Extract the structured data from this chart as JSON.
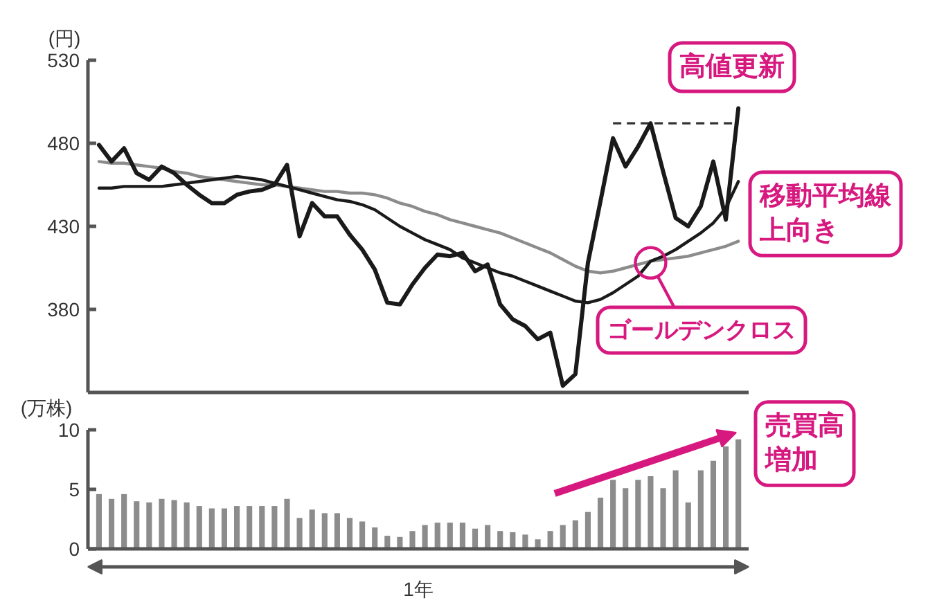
{
  "chart_data": [
    {
      "type": "line",
      "ylabel": "(円)",
      "tick_labels": "y",
      "ylim": [
        330,
        530
      ],
      "yticks": [
        380,
        430,
        480,
        530
      ],
      "categories": [
        null,
        null,
        null,
        null,
        null,
        null,
        null,
        null,
        null,
        null,
        null,
        null,
        null,
        null,
        null,
        null,
        null,
        null,
        null,
        null,
        null,
        null,
        null,
        null,
        null,
        null,
        null,
        null,
        null,
        null,
        null,
        null,
        null,
        null,
        null,
        null,
        null,
        null,
        null,
        null,
        null,
        null,
        null,
        null,
        null,
        null,
        null,
        null,
        null,
        null,
        null,
        null
      ],
      "series": [
        {
          "color": "#1a1a1a",
          "values": [
            479,
            469,
            477,
            462,
            458,
            466,
            462,
            455,
            449,
            444,
            444,
            449,
            451,
            452,
            455,
            467,
            424,
            444,
            436,
            436,
            425,
            416,
            404,
            384,
            383,
            395,
            405,
            413,
            412,
            414,
            403,
            407,
            383,
            374,
            370,
            362,
            366,
            334,
            341,
            408,
            445,
            483,
            466,
            478,
            492,
            463,
            435,
            430,
            442,
            469,
            434,
            501
          ]
        },
        {
          "color": "#1a1a1a",
          "values": [
            453,
            453,
            454,
            454,
            454,
            454,
            455,
            456,
            457,
            458,
            459,
            460,
            459,
            458,
            456,
            454,
            452,
            450,
            448,
            446,
            445,
            443,
            440,
            435,
            430,
            426,
            422,
            419,
            416,
            411,
            408,
            405,
            402,
            400,
            397,
            394,
            391,
            388,
            385,
            384,
            386,
            390,
            395,
            400,
            409,
            412,
            416,
            421,
            426,
            432,
            441,
            457
          ]
        },
        {
          "color": "#8c8c8c",
          "values": [
            469,
            468,
            468,
            467,
            466,
            465,
            463,
            462,
            460,
            459,
            458,
            457,
            456,
            455,
            455,
            454,
            453,
            452,
            451,
            451,
            450,
            450,
            449,
            447,
            444,
            442,
            439,
            437,
            434,
            432,
            430,
            428,
            426,
            423,
            420,
            417,
            414,
            410,
            406,
            403,
            402,
            403,
            405,
            407,
            409,
            410,
            411,
            412,
            414,
            416,
            418,
            421
          ]
        },
        {
          "color": "#333333",
          "line_style": "dashed",
          "values": [
            null,
            null,
            null,
            null,
            null,
            null,
            null,
            null,
            null,
            null,
            null,
            null,
            null,
            null,
            null,
            null,
            null,
            null,
            null,
            null,
            null,
            null,
            null,
            null,
            null,
            null,
            null,
            null,
            null,
            null,
            null,
            null,
            null,
            null,
            null,
            null,
            null,
            null,
            null,
            null,
            null,
            492,
            492,
            492,
            492,
            492,
            492,
            492,
            492,
            492,
            492,
            492
          ]
        },
        {
          "type": "scatter",
          "marker": "circle",
          "color": "#d6187f",
          "values": [
            null,
            null,
            null,
            null,
            null,
            null,
            null,
            null,
            null,
            null,
            null,
            null,
            null,
            null,
            null,
            null,
            null,
            null,
            null,
            null,
            null,
            null,
            null,
            null,
            null,
            null,
            null,
            null,
            null,
            null,
            null,
            null,
            null,
            null,
            null,
            null,
            null,
            null,
            null,
            null,
            null,
            null,
            null,
            null,
            408,
            null,
            null,
            null,
            null,
            null,
            null,
            null
          ]
        }
      ],
      "annotations": [
        "高値更新",
        "移動平均線上向き",
        "ゴールデンクロス"
      ]
    },
    {
      "type": "bar",
      "ylabel": "(万株)",
      "xlabel": "1年",
      "tick_labels": "y",
      "ylim": [
        0,
        10
      ],
      "yticks": [
        0,
        5,
        10
      ],
      "color": "#8c8c8c",
      "categories": [
        null,
        null,
        null,
        null,
        null,
        null,
        null,
        null,
        null,
        null,
        null,
        null,
        null,
        null,
        null,
        null,
        null,
        null,
        null,
        null,
        null,
        null,
        null,
        null,
        null,
        null,
        null,
        null,
        null,
        null,
        null,
        null,
        null,
        null,
        null,
        null,
        null,
        null,
        null,
        null,
        null,
        null,
        null,
        null,
        null,
        null,
        null,
        null,
        null,
        null,
        null,
        null
      ],
      "values": [
        4.6,
        4.2,
        4.6,
        4.0,
        3.9,
        4.2,
        4.1,
        3.9,
        3.6,
        3.4,
        3.4,
        3.6,
        3.6,
        3.6,
        3.6,
        4.2,
        2.6,
        3.3,
        3.0,
        3.0,
        2.6,
        2.3,
        1.8,
        1.1,
        1.0,
        1.5,
        2.0,
        2.2,
        2.2,
        2.2,
        1.7,
        2.0,
        1.5,
        1.4,
        1.2,
        0.8,
        1.5,
        2.0,
        2.4,
        3.1,
        4.3,
        5.8,
        5.1,
        5.8,
        6.1,
        5.1,
        6.6,
        3.9,
        6.6,
        7.4,
        8.6,
        9.2
      ],
      "annotations": [
        "売買高増加"
      ]
    }
  ]
}
